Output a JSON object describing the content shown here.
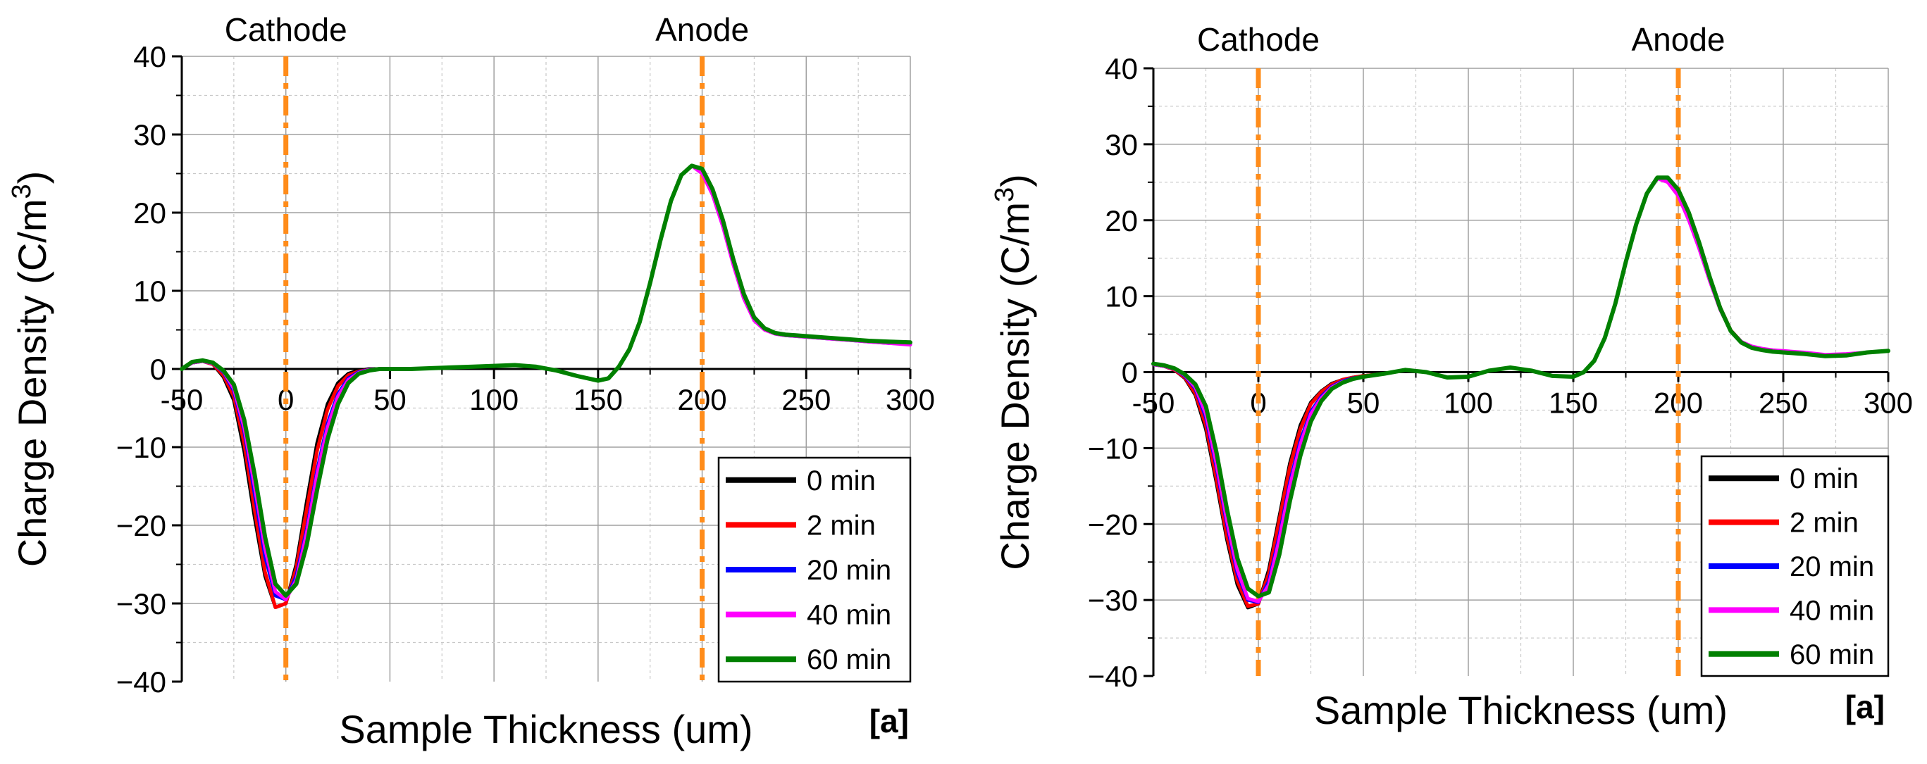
{
  "chart_data": [
    {
      "type": "line",
      "panel_label": "[a]",
      "xlabel": "Sample Thickness (um)",
      "ylabel": "Charge Density (C/m",
      "ylabel_sup": "3",
      "ylabel_close": ")",
      "xlim": [
        -50,
        300
      ],
      "ylim": [
        -40,
        40
      ],
      "xticks": [
        "-50",
        "0",
        "50",
        "100",
        "150",
        "200",
        "250",
        "300"
      ],
      "xtick_values": [
        -50,
        0,
        50,
        100,
        150,
        200,
        250,
        300
      ],
      "yticks": [
        "−40",
        "−30",
        "−20",
        "−10",
        "0",
        "10",
        "20",
        "30",
        "40"
      ],
      "ytick_values": [
        -40,
        -30,
        -20,
        -10,
        0,
        10,
        20,
        30,
        40
      ],
      "grid": true,
      "legend_position": "bottom-right",
      "annotations": [
        {
          "label": "Cathode",
          "x": 0
        },
        {
          "label": "Anode",
          "x": 200
        }
      ],
      "x": [
        -50,
        -45,
        -40,
        -35,
        -30,
        -25,
        -20,
        -15,
        -10,
        -5,
        0,
        5,
        10,
        15,
        20,
        25,
        30,
        35,
        40,
        45,
        50,
        60,
        70,
        80,
        90,
        100,
        110,
        120,
        130,
        140,
        150,
        155,
        160,
        165,
        170,
        175,
        180,
        185,
        190,
        195,
        200,
        205,
        210,
        215,
        220,
        225,
        230,
        235,
        240,
        245,
        250,
        260,
        270,
        280,
        290,
        300
      ],
      "series": [
        {
          "name": "0 min",
          "color": "#000000",
          "values": [
            0,
            0.8,
            1.0,
            0.6,
            -1.0,
            -4.0,
            -10.5,
            -19.0,
            -26.5,
            -30.5,
            -30.0,
            -25.0,
            -17.0,
            -9.5,
            -4.5,
            -1.8,
            -0.6,
            -0.2,
            0,
            0,
            0,
            0,
            0.1,
            0.2,
            0.3,
            0.4,
            0.5,
            0.3,
            -0.2,
            -0.9,
            -1.5,
            -1.2,
            0.3,
            2.5,
            6.0,
            11.0,
            16.5,
            21.5,
            24.8,
            26.0,
            25.5,
            23.0,
            19.0,
            14.0,
            9.5,
            6.5,
            5.2,
            4.6,
            4.4,
            4.3,
            4.2,
            4.0,
            3.8,
            3.6,
            3.4,
            3.3
          ]
        },
        {
          "name": "2 min",
          "color": "#ff0000",
          "values": [
            0,
            0.8,
            1.0,
            0.6,
            -0.8,
            -3.5,
            -9.5,
            -18.0,
            -26.0,
            -30.5,
            -30.0,
            -25.5,
            -18.0,
            -10.5,
            -5.2,
            -2.2,
            -0.8,
            -0.3,
            -0.1,
            0,
            0,
            0,
            0.1,
            0.2,
            0.3,
            0.4,
            0.5,
            0.3,
            -0.2,
            -0.9,
            -1.5,
            -1.2,
            0.3,
            2.5,
            6.0,
            11.0,
            16.5,
            21.5,
            24.8,
            26.0,
            25.5,
            23.0,
            19.0,
            14.0,
            9.5,
            6.5,
            5.2,
            4.6,
            4.4,
            4.3,
            4.2,
            4.0,
            3.8,
            3.6,
            3.4,
            3.3
          ]
        },
        {
          "name": "20 min",
          "color": "#0000ff",
          "values": [
            0,
            0.8,
            1.0,
            0.7,
            -0.4,
            -2.8,
            -8.0,
            -16.0,
            -24.0,
            -29.0,
            -29.5,
            -26.5,
            -20.5,
            -13.0,
            -7.0,
            -3.2,
            -1.2,
            -0.4,
            -0.1,
            0,
            0,
            0,
            0.1,
            0.2,
            0.3,
            0.4,
            0.5,
            0.3,
            -0.2,
            -0.9,
            -1.5,
            -1.2,
            0.3,
            2.5,
            6.0,
            11.0,
            16.5,
            21.5,
            24.8,
            26.0,
            25.3,
            22.6,
            18.6,
            13.6,
            9.3,
            6.4,
            5.1,
            4.5,
            4.3,
            4.2,
            4.1,
            3.9,
            3.7,
            3.5,
            3.3,
            3.2
          ]
        },
        {
          "name": "40 min",
          "color": "#ff00ff",
          "values": [
            0,
            0.8,
            1.0,
            0.7,
            -0.3,
            -2.5,
            -7.5,
            -15.0,
            -23.0,
            -28.5,
            -29.5,
            -27.0,
            -21.0,
            -13.5,
            -7.5,
            -3.5,
            -1.4,
            -0.5,
            -0.1,
            0,
            0,
            0,
            0.1,
            0.2,
            0.3,
            0.4,
            0.5,
            0.3,
            -0.2,
            -0.9,
            -1.5,
            -1.2,
            0.3,
            2.5,
            6.0,
            11.0,
            16.5,
            21.5,
            24.8,
            26.0,
            25.0,
            22.3,
            18.2,
            13.3,
            9.0,
            6.2,
            5.0,
            4.5,
            4.3,
            4.2,
            4.1,
            3.9,
            3.7,
            3.5,
            3.3,
            3.1
          ]
        },
        {
          "name": "60 min",
          "color": "#008000",
          "values": [
            0,
            0.9,
            1.1,
            0.8,
            -0.2,
            -2.0,
            -6.5,
            -13.5,
            -21.5,
            -27.5,
            -29.0,
            -27.5,
            -22.5,
            -15.5,
            -9.0,
            -4.5,
            -1.8,
            -0.6,
            -0.2,
            0,
            0,
            0,
            0.1,
            0.2,
            0.3,
            0.4,
            0.5,
            0.3,
            -0.2,
            -0.9,
            -1.5,
            -1.2,
            0.3,
            2.5,
            6.0,
            11.0,
            16.5,
            21.5,
            24.8,
            26.0,
            25.6,
            23.0,
            19.0,
            14.0,
            9.6,
            6.6,
            5.2,
            4.6,
            4.4,
            4.3,
            4.2,
            4.0,
            3.8,
            3.6,
            3.5,
            3.4
          ]
        }
      ]
    },
    {
      "type": "line",
      "panel_label": "[a]",
      "xlabel": "Sample Thickness (um)",
      "ylabel": "Charge Density (C/m",
      "ylabel_sup": "3",
      "ylabel_close": ")",
      "xlim": [
        -50,
        300
      ],
      "ylim": [
        -40,
        40
      ],
      "xticks": [
        "-50",
        "0",
        "50",
        "100",
        "150",
        "200",
        "250",
        "300"
      ],
      "xtick_values": [
        -50,
        0,
        50,
        100,
        150,
        200,
        250,
        300
      ],
      "yticks": [
        "−40",
        "−30",
        "−20",
        "−10",
        "0",
        "10",
        "20",
        "30",
        "40"
      ],
      "ytick_values": [
        -40,
        -30,
        -20,
        -10,
        0,
        10,
        20,
        30,
        40
      ],
      "grid": true,
      "legend_position": "bottom-right",
      "annotations": [
        {
          "label": "Cathode",
          "x": 0
        },
        {
          "label": "Anode",
          "x": 200
        }
      ],
      "x": [
        -50,
        -45,
        -40,
        -35,
        -30,
        -25,
        -20,
        -15,
        -10,
        -5,
        0,
        5,
        10,
        15,
        20,
        25,
        30,
        35,
        40,
        45,
        50,
        60,
        70,
        80,
        90,
        100,
        110,
        120,
        130,
        140,
        150,
        155,
        160,
        165,
        170,
        175,
        180,
        185,
        190,
        195,
        200,
        205,
        210,
        215,
        220,
        225,
        230,
        235,
        240,
        245,
        250,
        260,
        270,
        280,
        290,
        300
      ],
      "series": [
        {
          "name": "0 min",
          "color": "#000000",
          "values": [
            1.0,
            0.8,
            0.3,
            -0.8,
            -3.0,
            -7.5,
            -14.5,
            -22.0,
            -28.0,
            -31.0,
            -30.5,
            -26.0,
            -19.0,
            -12.0,
            -7.0,
            -4.0,
            -2.5,
            -1.5,
            -1.0,
            -0.7,
            -0.5,
            -0.2,
            0.3,
            0.0,
            -0.7,
            -0.6,
            0.2,
            0.6,
            0.2,
            -0.5,
            -0.6,
            0.0,
            1.5,
            4.5,
            9.0,
            14.5,
            19.5,
            23.5,
            25.5,
            25.5,
            24.0,
            21.0,
            17.0,
            12.5,
            8.5,
            5.5,
            4.0,
            3.3,
            3.0,
            2.8,
            2.7,
            2.5,
            2.2,
            2.3,
            2.6,
            2.8
          ]
        },
        {
          "name": "2 min",
          "color": "#ff0000",
          "values": [
            1.0,
            0.8,
            0.3,
            -0.7,
            -2.8,
            -7.0,
            -14.0,
            -21.5,
            -27.5,
            -30.8,
            -30.5,
            -26.5,
            -19.5,
            -12.5,
            -7.5,
            -4.2,
            -2.6,
            -1.6,
            -1.0,
            -0.7,
            -0.5,
            -0.2,
            0.3,
            0.0,
            -0.7,
            -0.6,
            0.2,
            0.6,
            0.2,
            -0.5,
            -0.6,
            0.0,
            1.5,
            4.5,
            9.0,
            14.5,
            19.5,
            23.5,
            25.5,
            25.5,
            24.0,
            21.0,
            17.0,
            12.5,
            8.5,
            5.5,
            4.0,
            3.3,
            3.0,
            2.8,
            2.7,
            2.5,
            2.2,
            2.3,
            2.6,
            2.8
          ]
        },
        {
          "name": "20 min",
          "color": "#0000ff",
          "values": [
            1.0,
            0.8,
            0.4,
            -0.5,
            -2.2,
            -6.0,
            -12.5,
            -20.0,
            -26.5,
            -30.0,
            -30.3,
            -27.5,
            -21.5,
            -14.5,
            -9.0,
            -5.2,
            -3.2,
            -1.9,
            -1.2,
            -0.8,
            -0.6,
            -0.2,
            0.3,
            0.0,
            -0.7,
            -0.6,
            0.2,
            0.6,
            0.2,
            -0.5,
            -0.6,
            0.0,
            1.5,
            4.5,
            9.0,
            14.5,
            19.5,
            23.5,
            25.5,
            25.3,
            23.6,
            20.5,
            16.6,
            12.2,
            8.3,
            5.4,
            4.0,
            3.3,
            3.0,
            2.8,
            2.7,
            2.5,
            2.2,
            2.3,
            2.6,
            2.8
          ]
        },
        {
          "name": "40 min",
          "color": "#ff00ff",
          "values": [
            1.0,
            0.8,
            0.4,
            -0.4,
            -2.0,
            -5.5,
            -12.0,
            -19.5,
            -26.0,
            -29.8,
            -30.2,
            -28.0,
            -22.0,
            -15.0,
            -9.5,
            -5.5,
            -3.4,
            -2.0,
            -1.3,
            -0.9,
            -0.6,
            -0.2,
            0.3,
            0.0,
            -0.7,
            -0.6,
            0.2,
            0.6,
            0.2,
            -0.5,
            -0.6,
            0.0,
            1.5,
            4.5,
            9.0,
            14.5,
            19.5,
            23.5,
            25.5,
            25.0,
            23.2,
            20.0,
            16.2,
            12.0,
            8.2,
            5.4,
            4.0,
            3.4,
            3.1,
            2.9,
            2.8,
            2.6,
            2.3,
            2.4,
            2.6,
            2.8
          ]
        },
        {
          "name": "60 min",
          "color": "#008000",
          "values": [
            1.1,
            0.9,
            0.5,
            -0.3,
            -1.6,
            -4.5,
            -10.5,
            -18.0,
            -24.5,
            -28.5,
            -29.5,
            -29.0,
            -24.0,
            -17.0,
            -11.0,
            -6.5,
            -3.8,
            -2.2,
            -1.4,
            -0.9,
            -0.6,
            -0.2,
            0.3,
            0.0,
            -0.7,
            -0.6,
            0.2,
            0.6,
            0.2,
            -0.5,
            -0.6,
            0.0,
            1.5,
            4.5,
            9.0,
            14.5,
            19.5,
            23.5,
            25.6,
            25.6,
            24.0,
            21.0,
            17.0,
            12.5,
            8.4,
            5.4,
            3.9,
            3.2,
            2.9,
            2.7,
            2.6,
            2.4,
            2.1,
            2.2,
            2.6,
            2.8
          ]
        }
      ]
    }
  ]
}
